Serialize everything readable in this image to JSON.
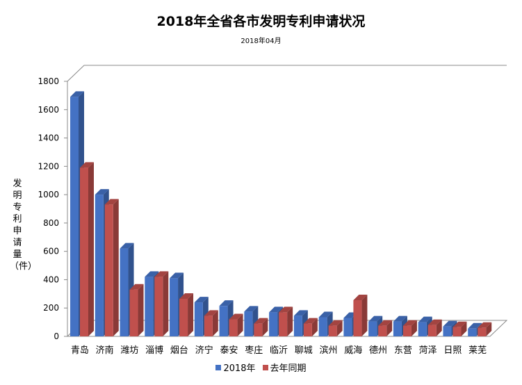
{
  "chart_data": {
    "type": "bar",
    "title": "2018年全省各市发明专利申请状况",
    "subtitle": "2018年04月",
    "ylabel": "发明专利申请量（件）",
    "xlabel": "",
    "ylim": [
      0,
      1800
    ],
    "yticks": [
      0,
      200,
      400,
      600,
      800,
      1000,
      1200,
      1400,
      1600,
      1800
    ],
    "grid": false,
    "legend_position": "bottom",
    "categories": [
      "青岛",
      "济南",
      "潍坊",
      "淄博",
      "烟台",
      "济宁",
      "泰安",
      "枣庄",
      "临沂",
      "聊城",
      "滨州",
      "威海",
      "德州",
      "东营",
      "菏泽",
      "日照",
      "莱芜"
    ],
    "series": [
      {
        "name": "2018年",
        "color": "#4472c4",
        "values": [
          1690,
          1000,
          620,
          420,
          410,
          240,
          215,
          175,
          170,
          145,
          135,
          130,
          105,
          105,
          100,
          70,
          55
        ]
      },
      {
        "name": "去年同期",
        "color": "#c0504d",
        "values": [
          1190,
          930,
          330,
          420,
          265,
          145,
          120,
          90,
          170,
          90,
          75,
          255,
          75,
          75,
          80,
          65,
          60
        ]
      }
    ]
  }
}
